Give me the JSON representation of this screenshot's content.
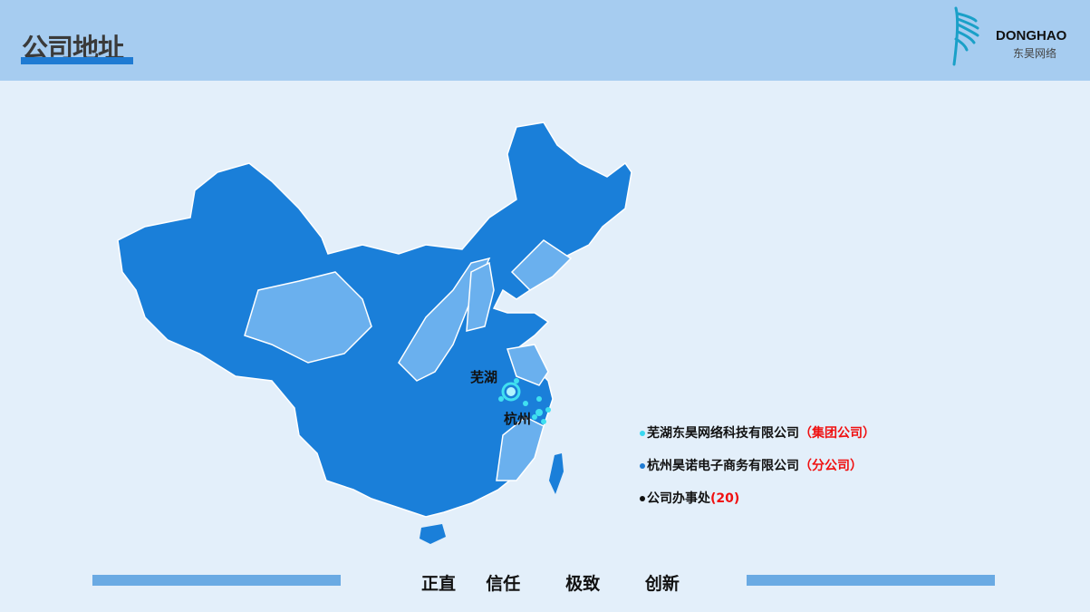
{
  "header": {
    "title": "公司地址",
    "logo": {
      "name": "DONGHAO",
      "subtitle": "东昊网络",
      "icon": "feather-wing-logo"
    }
  },
  "map": {
    "cities": [
      {
        "name": "芜湖"
      },
      {
        "name": "杭州"
      }
    ],
    "colors": {
      "province_dark": "#1a7fd9",
      "province_light": "#6ab0ee",
      "hq_marker": "#40e0f0"
    }
  },
  "legend": [
    {
      "text": "芜湖东昊网络科技有限公司",
      "tag": "（集团公司）",
      "color": "#3ad8f0"
    },
    {
      "text": "杭州昊诺电子商务有限公司",
      "tag": "（分公司）",
      "color": "#1f7bd3"
    },
    {
      "text": "公司办事处",
      "tag": "(20)",
      "color": "#111111"
    }
  ],
  "footer": {
    "motto": "正直  信任   极致   创新"
  }
}
